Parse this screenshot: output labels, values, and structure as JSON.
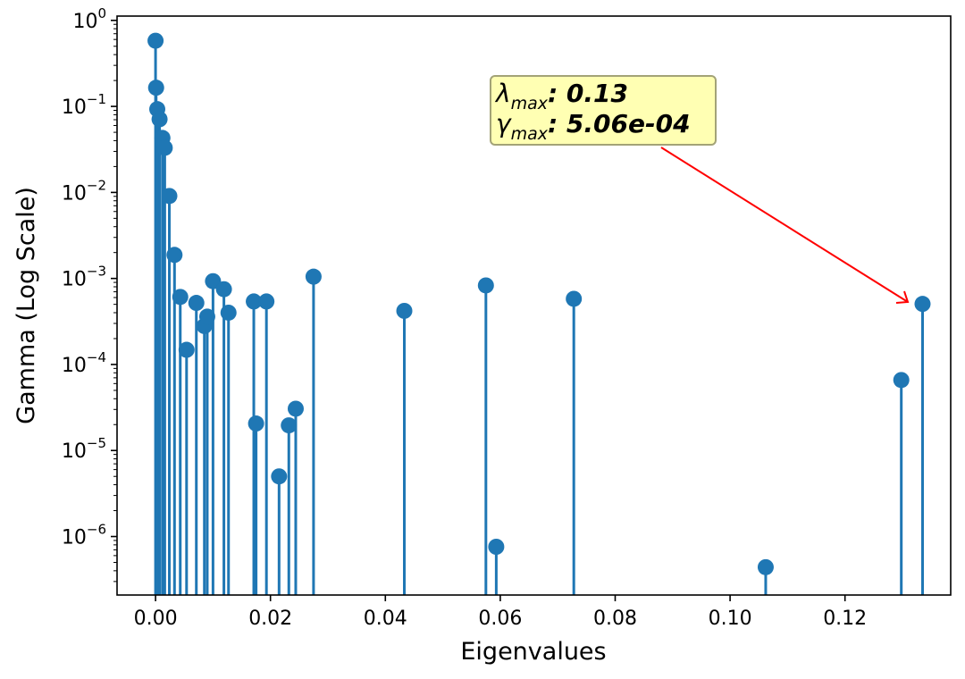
{
  "chart_data": {
    "type": "stem",
    "xlabel": "Eigenvalues",
    "ylabel": "Gamma (Log Scale)",
    "yscale": "log",
    "xlim": [
      -0.0067,
      0.1384
    ],
    "ylim_log10": [
      -6.68,
      0.05
    ],
    "x_ticks": [
      {
        "value": 0.0,
        "label": "0.00"
      },
      {
        "value": 0.02,
        "label": "0.02"
      },
      {
        "value": 0.04,
        "label": "0.04"
      },
      {
        "value": 0.06,
        "label": "0.06"
      },
      {
        "value": 0.08,
        "label": "0.08"
      },
      {
        "value": 0.1,
        "label": "0.10"
      },
      {
        "value": 0.12,
        "label": "0.12"
      }
    ],
    "y_ticks": [
      {
        "exp": 0,
        "base": "10",
        "sup": "0"
      },
      {
        "exp": -1,
        "base": "10",
        "sup": "−1"
      },
      {
        "exp": -2,
        "base": "10",
        "sup": "−2"
      },
      {
        "exp": -3,
        "base": "10",
        "sup": "−3"
      },
      {
        "exp": -4,
        "base": "10",
        "sup": "−4"
      },
      {
        "exp": -5,
        "base": "10",
        "sup": "−5"
      },
      {
        "exp": -6,
        "base": "10",
        "sup": "−6"
      }
    ],
    "color": "#1f77b4",
    "points": [
      {
        "x": 0.0,
        "y": 0.58
      },
      {
        "x": 0.0001,
        "y": 0.165
      },
      {
        "x": 0.0003,
        "y": 0.093
      },
      {
        "x": 0.0007,
        "y": 0.071
      },
      {
        "x": 0.0012,
        "y": 0.043
      },
      {
        "x": 0.0016,
        "y": 0.033
      },
      {
        "x": 0.0024,
        "y": 0.0091
      },
      {
        "x": 0.0033,
        "y": 0.00188
      },
      {
        "x": 0.0043,
        "y": 0.00061
      },
      {
        "x": 0.0054,
        "y": 0.000148
      },
      {
        "x": 0.0071,
        "y": 0.00052
      },
      {
        "x": 0.0085,
        "y": 0.00028
      },
      {
        "x": 0.009,
        "y": 0.00036
      },
      {
        "x": 0.01,
        "y": 0.00093
      },
      {
        "x": 0.0119,
        "y": 0.00075
      },
      {
        "x": 0.0127,
        "y": 0.0004
      },
      {
        "x": 0.0171,
        "y": 0.00054
      },
      {
        "x": 0.0175,
        "y": 2.06e-05
      },
      {
        "x": 0.0193,
        "y": 0.00054
      },
      {
        "x": 0.0215,
        "y": 5e-06
      },
      {
        "x": 0.0232,
        "y": 1.96e-05
      },
      {
        "x": 0.0244,
        "y": 3.06e-05
      },
      {
        "x": 0.0275,
        "y": 0.00105
      },
      {
        "x": 0.0433,
        "y": 0.00042
      },
      {
        "x": 0.0575,
        "y": 0.00083
      },
      {
        "x": 0.0593,
        "y": 7.6e-07
      },
      {
        "x": 0.0728,
        "y": 0.00058
      },
      {
        "x": 0.1062,
        "y": 4.4e-07
      },
      {
        "x": 0.1298,
        "y": 6.6e-05
      },
      {
        "x": 0.1335,
        "y": 0.000506
      }
    ],
    "annotation": {
      "lambda_symbol": "λ",
      "lambda_sub": "max",
      "lambda_text": ": 0.13",
      "gamma_symbol": "γ",
      "gamma_sub": "max",
      "gamma_text": ": 5.06e-04",
      "box_color": "#ffffb3",
      "border_color": "#a3a377",
      "arrow_color": "#ff0000",
      "target_x": 0.1335,
      "target_y": 0.000506
    }
  }
}
